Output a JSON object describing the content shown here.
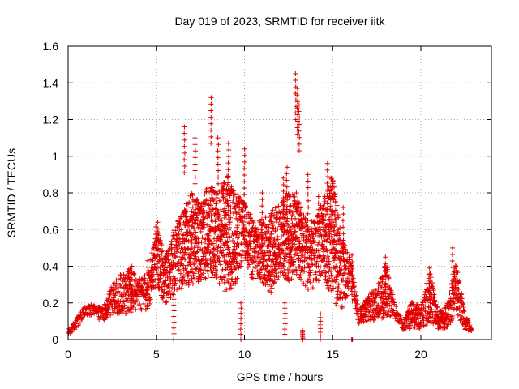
{
  "chart_data": {
    "type": "scatter",
    "title": "Day 019 of 2023, SRMTID for receiver iitk",
    "xlabel": "GPS time / hours",
    "ylabel": "SRMTID / TECUs",
    "xlim": [
      0,
      24
    ],
    "ylim": [
      0,
      1.6
    ],
    "x_ticks": [
      0,
      5,
      10,
      15,
      20
    ],
    "x_tick_labels": [
      "0",
      "5",
      "10",
      "15",
      "20"
    ],
    "y_ticks": [
      0,
      0.2,
      0.4,
      0.6,
      0.8,
      1.0,
      1.2,
      1.4,
      1.6
    ],
    "y_tick_labels": [
      "0",
      "0.2",
      "0.4",
      "0.6",
      "0.8",
      "1",
      "1.2",
      "1.4",
      "1.6"
    ],
    "grid": true,
    "marker": "+",
    "color": "#e00000",
    "series": [
      {
        "name": "SRMTID",
        "envelope": [
          [
            0.0,
            0.02,
            0.05
          ],
          [
            0.5,
            0.06,
            0.12
          ],
          [
            1.0,
            0.12,
            0.19
          ],
          [
            1.5,
            0.12,
            0.19
          ],
          [
            2.0,
            0.1,
            0.18
          ],
          [
            2.5,
            0.14,
            0.3
          ],
          [
            3.0,
            0.14,
            0.36
          ],
          [
            3.5,
            0.14,
            0.4
          ],
          [
            4.0,
            0.16,
            0.33
          ],
          [
            4.5,
            0.15,
            0.36
          ],
          [
            5.0,
            0.3,
            0.63
          ],
          [
            5.5,
            0.18,
            0.45
          ],
          [
            6.0,
            0.25,
            0.6
          ],
          [
            6.5,
            0.28,
            0.7
          ],
          [
            7.0,
            0.3,
            0.8
          ],
          [
            7.5,
            0.3,
            0.75
          ],
          [
            8.0,
            0.35,
            0.85
          ],
          [
            8.5,
            0.3,
            0.8
          ],
          [
            9.0,
            0.25,
            0.9
          ],
          [
            9.5,
            0.3,
            0.8
          ],
          [
            10.0,
            0.45,
            0.75
          ],
          [
            10.5,
            0.3,
            0.65
          ],
          [
            11.0,
            0.3,
            0.65
          ],
          [
            11.5,
            0.25,
            0.7
          ],
          [
            12.0,
            0.35,
            0.75
          ],
          [
            12.5,
            0.3,
            0.8
          ],
          [
            13.0,
            0.35,
            0.8
          ],
          [
            13.5,
            0.25,
            0.65
          ],
          [
            14.0,
            0.28,
            0.65
          ],
          [
            14.5,
            0.35,
            0.78
          ],
          [
            15.0,
            0.2,
            0.9
          ],
          [
            15.5,
            0.15,
            0.55
          ],
          [
            16.0,
            0.3,
            0.45
          ],
          [
            16.5,
            0.08,
            0.15
          ],
          [
            17.0,
            0.1,
            0.25
          ],
          [
            17.5,
            0.1,
            0.28
          ],
          [
            18.0,
            0.12,
            0.43
          ],
          [
            18.5,
            0.12,
            0.2
          ],
          [
            19.0,
            0.05,
            0.1
          ],
          [
            19.5,
            0.06,
            0.22
          ],
          [
            20.0,
            0.05,
            0.18
          ],
          [
            20.5,
            0.1,
            0.38
          ],
          [
            21.0,
            0.05,
            0.15
          ],
          [
            21.5,
            0.05,
            0.2
          ],
          [
            22.0,
            0.15,
            0.45
          ],
          [
            22.5,
            0.04,
            0.15
          ],
          [
            23.0,
            0.02,
            0.04
          ]
        ],
        "peaks": [
          [
            6.6,
            1.16
          ],
          [
            7.2,
            1.1
          ],
          [
            8.1,
            1.32
          ],
          [
            8.5,
            1.1
          ],
          [
            9.1,
            1.07
          ],
          [
            10.0,
            1.04
          ],
          [
            11.0,
            0.8
          ],
          [
            12.2,
            0.88
          ],
          [
            12.4,
            0.94
          ],
          [
            12.9,
            1.45
          ],
          [
            13.0,
            1.37
          ],
          [
            13.1,
            1.28
          ],
          [
            13.6,
            0.9
          ],
          [
            14.2,
            0.78
          ],
          [
            14.7,
            0.96
          ],
          [
            15.6,
            0.72
          ],
          [
            16.1,
            0.46
          ],
          [
            18.0,
            0.45
          ],
          [
            20.5,
            0.39
          ],
          [
            21.8,
            0.5
          ],
          [
            4.5,
            0.43
          ],
          [
            3.6,
            0.4
          ],
          [
            5.1,
            0.64
          ],
          [
            13.3,
            0.05
          ],
          [
            16.1,
            0.0
          ],
          [
            12.3,
            0.2
          ],
          [
            6.0,
            0.22
          ],
          [
            9.8,
            0.2
          ],
          [
            14.3,
            0.14
          ]
        ]
      }
    ]
  }
}
